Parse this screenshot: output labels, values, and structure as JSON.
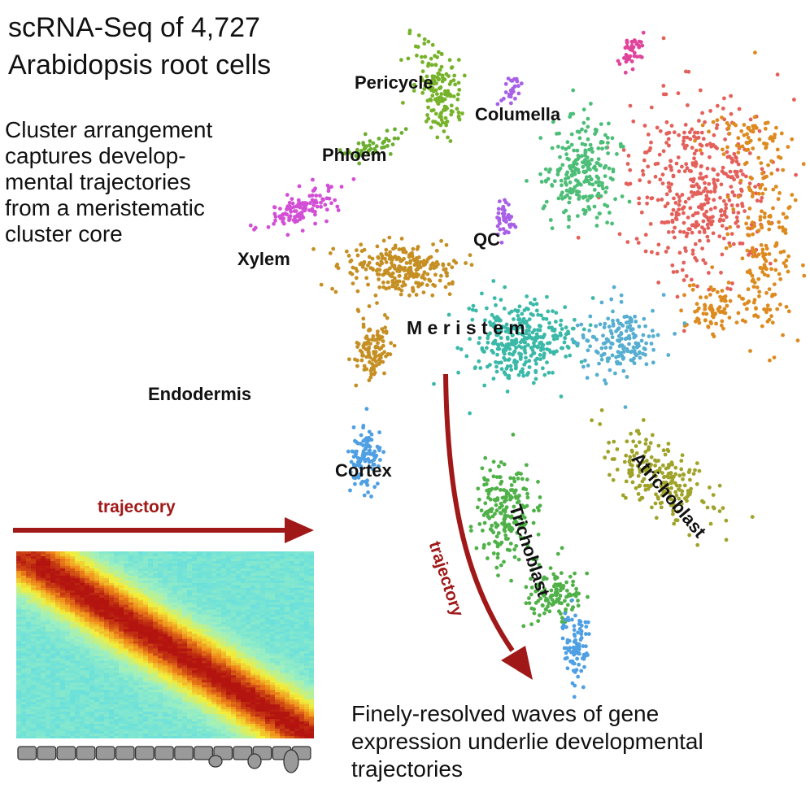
{
  "figure": {
    "title_line1": "scRNA-Seq of 4,727",
    "title_line2": "Arabidopsis root cells",
    "description_lines": [
      "Cluster arrangement",
      "captures develop-",
      "mental trajectories",
      "from a meristematic",
      "cluster core"
    ],
    "bottom_caption_lines": [
      "Finely-resolved waves of gene",
      "expression underlie developmental",
      "trajectories"
    ],
    "trajectory_label_horizontal": "trajectory",
    "trajectory_label_curved": "trajectory"
  },
  "clusters": [
    {
      "label": "Pericycle",
      "color": "#77b32a"
    },
    {
      "label": "Columella",
      "color": "#e0459c"
    },
    {
      "label": "Phloem",
      "color": "#6cae2f"
    },
    {
      "label": "Xylem",
      "color": "#d24fd6"
    },
    {
      "label": "QC",
      "color": "#a860e8"
    },
    {
      "label": "M e r i s t e m",
      "color": "#3bb9a8"
    },
    {
      "label": "Endodermis",
      "color": "#dd4fc2"
    },
    {
      "label": "Cortex",
      "color": "#4f9fe3"
    },
    {
      "label": "Trichoblast",
      "color": "#4fb148"
    },
    {
      "label": "Atrichoblast",
      "color": "#a0a32a"
    }
  ],
  "colors": {
    "trajectory_arrow": "#a01818",
    "epidermis_red": "#e4605a",
    "orange": "#dd8a1f",
    "brown": "#c58f23",
    "green_col": "#4dbe78",
    "steel_blue": "#56aed0"
  },
  "heatmap": {
    "colorscale": [
      "#2b3fd6",
      "#52d8e8",
      "#9ff0c0",
      "#f3ef3a",
      "#f08a1a",
      "#b3140f"
    ]
  }
}
